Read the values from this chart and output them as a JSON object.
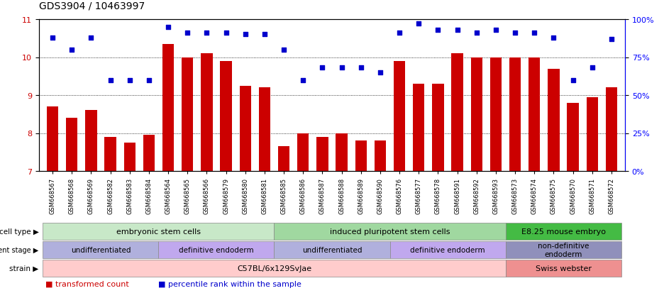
{
  "title": "GDS3904 / 10463997",
  "samples": [
    "GSM668567",
    "GSM668568",
    "GSM668569",
    "GSM668582",
    "GSM668583",
    "GSM668584",
    "GSM668564",
    "GSM668565",
    "GSM668566",
    "GSM668579",
    "GSM668580",
    "GSM668581",
    "GSM668585",
    "GSM668586",
    "GSM668587",
    "GSM668588",
    "GSM668589",
    "GSM668590",
    "GSM668576",
    "GSM668577",
    "GSM668578",
    "GSM668591",
    "GSM668592",
    "GSM668593",
    "GSM668573",
    "GSM668574",
    "GSM668575",
    "GSM668570",
    "GSM668571",
    "GSM668572"
  ],
  "bar_values": [
    8.7,
    8.4,
    8.6,
    7.9,
    7.75,
    7.95,
    10.35,
    10.0,
    10.1,
    9.9,
    9.25,
    9.2,
    7.65,
    8.0,
    7.9,
    8.0,
    7.8,
    7.8,
    9.9,
    9.3,
    9.3,
    10.1,
    10.0,
    10.0,
    10.0,
    10.0,
    9.7,
    8.8,
    8.95,
    9.2
  ],
  "percentile_values": [
    88,
    80,
    88,
    60,
    60,
    60,
    95,
    91,
    91,
    91,
    90,
    90,
    80,
    60,
    68,
    68,
    68,
    65,
    91,
    97,
    93,
    93,
    91,
    93,
    91,
    91,
    88,
    60,
    68,
    87
  ],
  "bar_color": "#cc0000",
  "percentile_color": "#0000cc",
  "ylim_left": [
    7,
    11
  ],
  "ylim_right": [
    0,
    100
  ],
  "yticks_left": [
    7,
    8,
    9,
    10,
    11
  ],
  "yticks_right": [
    0,
    25,
    50,
    75,
    100
  ],
  "cell_type_groups": [
    {
      "label": "embryonic stem cells",
      "start": 0,
      "end": 11,
      "color": "#c8e8c8"
    },
    {
      "label": "induced pluripotent stem cells",
      "start": 12,
      "end": 23,
      "color": "#a0d8a0"
    },
    {
      "label": "E8.25 mouse embryo",
      "start": 24,
      "end": 29,
      "color": "#44bb44"
    }
  ],
  "dev_stage_groups": [
    {
      "label": "undifferentiated",
      "start": 0,
      "end": 5,
      "color": "#b0b0dd"
    },
    {
      "label": "definitive endoderm",
      "start": 6,
      "end": 11,
      "color": "#c0a8ee"
    },
    {
      "label": "undifferentiated",
      "start": 12,
      "end": 17,
      "color": "#b0b0dd"
    },
    {
      "label": "definitive endoderm",
      "start": 18,
      "end": 23,
      "color": "#c0a8ee"
    },
    {
      "label": "non-definitive\nendoderm",
      "start": 24,
      "end": 29,
      "color": "#9090bb"
    }
  ],
  "strain_groups": [
    {
      "label": "C57BL/6x129SvJae",
      "start": 0,
      "end": 23,
      "color": "#ffcccc"
    },
    {
      "label": "Swiss webster",
      "start": 24,
      "end": 29,
      "color": "#ee9090"
    }
  ],
  "background_color": "#ffffff",
  "title_fontsize": 10,
  "bar_width": 0.6,
  "row_label_color": "#000000"
}
